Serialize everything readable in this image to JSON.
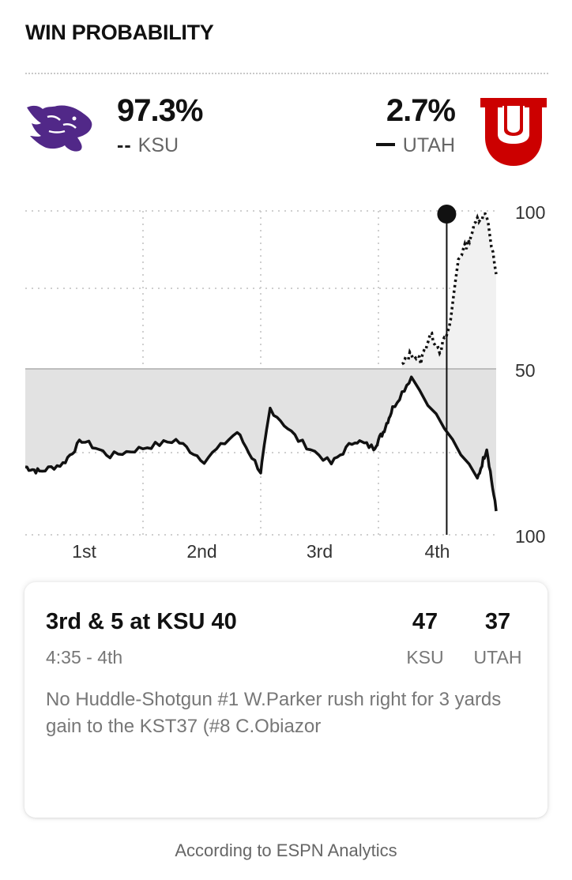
{
  "header": {
    "title": "WIN PROBABILITY"
  },
  "teams": {
    "away": {
      "abbr": "KSU",
      "pct": "97.3%",
      "line_style": "--",
      "logo": "ksu-wildcat-logo",
      "color": "#512888"
    },
    "home": {
      "abbr": "UTAH",
      "pct": "2.7%",
      "line_style": "—",
      "logo": "utah-block-u-logo",
      "color": "#CC0000"
    }
  },
  "chart_data": {
    "type": "line",
    "title": "",
    "x_categories": [
      "1st",
      "2nd",
      "3rd",
      "4th"
    ],
    "y_ticks": [
      "100",
      "50",
      "100"
    ],
    "y_range": [
      -100,
      100
    ],
    "y_semantics": "positive = KSU win %, negative = UTAH win %",
    "grid": true,
    "series": [
      {
        "name": "KSU",
        "style": "dotted",
        "x": [
          0.8,
          0.82,
          0.84,
          0.86,
          0.88,
          0.9,
          0.92,
          0.94,
          0.96,
          0.98,
          1.0
        ],
        "y": [
          2,
          10,
          5,
          22,
          12,
          24,
          70,
          80,
          95,
          98,
          60
        ]
      },
      {
        "name": "UTAH",
        "style": "solid",
        "x": [
          0.0,
          0.03,
          0.08,
          0.12,
          0.18,
          0.25,
          0.32,
          0.38,
          0.45,
          0.5,
          0.52,
          0.58,
          0.65,
          0.7,
          0.74,
          0.76,
          0.78,
          0.82,
          0.96,
          0.98,
          1.0
        ],
        "y": [
          -62,
          -65,
          -60,
          -45,
          -55,
          -50,
          -45,
          -58,
          -40,
          -65,
          -25,
          -45,
          -60,
          -45,
          -50,
          -40,
          -25,
          -5,
          -70,
          -50,
          -90
        ]
      }
    ],
    "current_point": {
      "x": 0.895,
      "y": 98
    }
  },
  "play": {
    "down_distance": "3rd & 5 at KSU 40",
    "clock": "4:35 - 4th",
    "score_ksu": "47",
    "score_utah": "37",
    "ksu_label": "KSU",
    "utah_label": "UTAH",
    "description": "No Huddle-Shotgun #1 W.Parker rush right for 3 yards gain to the KST37 (#8 C.Obiazor"
  },
  "footer": {
    "attribution": "According to ESPN Analytics"
  }
}
